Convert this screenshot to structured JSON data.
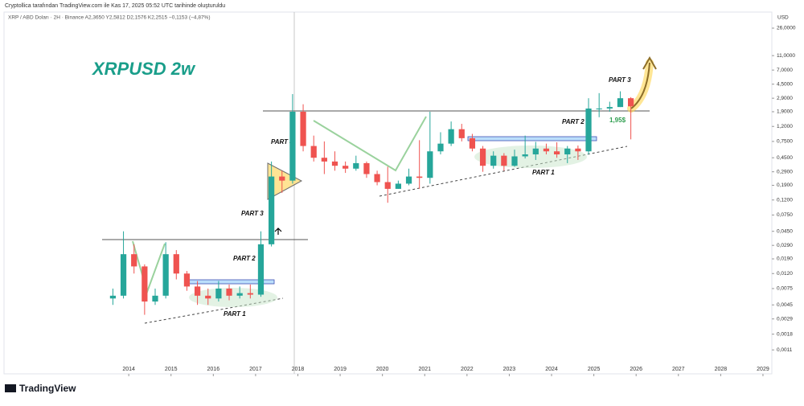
{
  "header": {
    "attribution": "Cryptollica tarafından TradingView.com ile Kas 17, 2025 05:52 UTC tarihinde oluşturuldu",
    "legend": "XRP / ABD Doları · 2H · Binance  A2,3650  Y2,5812  D2,1576  K2,2515  −0,1153 (−4,87%)",
    "currency": "USD"
  },
  "footer": {
    "brand": "TradingView"
  },
  "chart_data": {
    "type": "candlestick",
    "title": "XRPUSD 2w",
    "log_scale": true,
    "up_color": "#26a69a",
    "down_color": "#ef5350",
    "x": [
      2013.625,
      2013.875,
      2014.125,
      2014.375,
      2014.625,
      2014.875,
      2015.125,
      2015.375,
      2015.625,
      2015.875,
      2016.125,
      2016.375,
      2016.625,
      2016.875,
      2017.125,
      2017.375,
      2017.625,
      2017.875,
      2018.125,
      2018.375,
      2018.625,
      2018.875,
      2019.125,
      2019.375,
      2019.625,
      2019.875,
      2020.125,
      2020.375,
      2020.625,
      2020.875,
      2021.125,
      2021.375,
      2021.625,
      2021.875,
      2022.125,
      2022.375,
      2022.625,
      2022.875,
      2023.125,
      2023.375,
      2023.625,
      2023.875,
      2024.125,
      2024.375,
      2024.625,
      2024.875,
      2025.125,
      2025.375,
      2025.625,
      2025.875
    ],
    "open": [
      0.0055,
      0.006,
      0.022,
      0.015,
      0.005,
      0.006,
      0.022,
      0.012,
      0.008,
      0.006,
      0.0055,
      0.0075,
      0.006,
      0.0065,
      0.0062,
      0.03,
      0.25,
      0.22,
      1.9,
      0.65,
      0.45,
      0.4,
      0.35,
      0.32,
      0.38,
      0.27,
      0.21,
      0.17,
      0.2,
      0.25,
      0.24,
      0.55,
      0.7,
      1.1,
      0.83,
      0.6,
      0.35,
      0.48,
      0.35,
      0.47,
      0.5,
      0.6,
      0.55,
      0.5,
      0.6,
      0.55,
      2.1,
      2.1,
      2.2,
      2.9
    ],
    "high": [
      0.0075,
      0.045,
      0.03,
      0.016,
      0.0075,
      0.032,
      0.025,
      0.013,
      0.0095,
      0.0075,
      0.0095,
      0.0085,
      0.008,
      0.0085,
      0.045,
      0.4,
      0.3,
      3.3,
      2.4,
      0.9,
      0.75,
      0.55,
      0.4,
      0.48,
      0.4,
      0.3,
      0.34,
      0.22,
      0.32,
      0.78,
      1.9,
      1.0,
      1.4,
      1.3,
      0.95,
      0.65,
      0.55,
      0.52,
      0.58,
      0.9,
      0.74,
      0.7,
      0.73,
      0.65,
      0.66,
      2.9,
      3.4,
      2.6,
      3.6,
      3.0
    ],
    "low": [
      0.0045,
      0.0055,
      0.012,
      0.0033,
      0.0045,
      0.0055,
      0.01,
      0.007,
      0.0045,
      0.0045,
      0.005,
      0.0052,
      0.0055,
      0.0055,
      0.0058,
      0.028,
      0.15,
      0.2,
      0.55,
      0.4,
      0.27,
      0.3,
      0.28,
      0.3,
      0.24,
      0.19,
      0.11,
      0.17,
      0.19,
      0.17,
      0.2,
      0.5,
      0.65,
      0.75,
      0.55,
      0.29,
      0.32,
      0.3,
      0.34,
      0.44,
      0.42,
      0.5,
      0.45,
      0.38,
      0.42,
      0.5,
      1.6,
      1.9,
      2.2,
      0.8
    ],
    "close": [
      0.006,
      0.022,
      0.015,
      0.005,
      0.006,
      0.022,
      0.012,
      0.008,
      0.006,
      0.0055,
      0.0075,
      0.006,
      0.0065,
      0.0062,
      0.03,
      0.25,
      0.22,
      1.9,
      0.65,
      0.45,
      0.4,
      0.35,
      0.32,
      0.38,
      0.27,
      0.21,
      0.17,
      0.2,
      0.25,
      0.24,
      0.55,
      0.7,
      1.1,
      0.83,
      0.6,
      0.35,
      0.48,
      0.35,
      0.47,
      0.5,
      0.6,
      0.55,
      0.5,
      0.6,
      0.55,
      2.1,
      2.1,
      2.2,
      2.9,
      2.2515
    ],
    "xlim": [
      2011.05,
      2029.21
    ],
    "xticks": [
      2014,
      2015,
      2016,
      2017,
      2018,
      2019,
      2020,
      2021,
      2022,
      2023,
      2024,
      2025,
      2026,
      2027,
      2028,
      2029
    ],
    "ylim": [
      0.00052,
      43
    ],
    "yticks": [
      {
        "value": 26,
        "label": "26,0000"
      },
      {
        "value": 11,
        "label": "11,0000"
      },
      {
        "value": 7,
        "label": "7,0000"
      },
      {
        "value": 4.5,
        "label": "4,5000"
      },
      {
        "value": 2.9,
        "label": "2,9000"
      },
      {
        "value": 1.9,
        "label": "1,9000"
      },
      {
        "value": 1.2,
        "label": "1,2000"
      },
      {
        "value": 0.75,
        "label": "0,7500"
      },
      {
        "value": 0.45,
        "label": "0,4500"
      },
      {
        "value": 0.29,
        "label": "0,2900"
      },
      {
        "value": 0.19,
        "label": "0,1900"
      },
      {
        "value": 0.12,
        "label": "0,1200"
      },
      {
        "value": 0.075,
        "label": "0,0750"
      },
      {
        "value": 0.045,
        "label": "0,0450"
      },
      {
        "value": 0.029,
        "label": "0,0290"
      },
      {
        "value": 0.019,
        "label": "0,0190"
      },
      {
        "value": 0.012,
        "label": "0,0120"
      },
      {
        "value": 0.0075,
        "label": "0,0075"
      },
      {
        "value": 0.0045,
        "label": "0,0045"
      },
      {
        "value": 0.0029,
        "label": "0,0029"
      },
      {
        "value": 0.0018,
        "label": "0,0018"
      },
      {
        "value": 0.0011,
        "label": "0,0011"
      }
    ],
    "annotations": [
      "PART 1",
      "PART 2",
      "PART 3",
      "PART 4",
      "PART 3",
      "PART 2",
      "PART 1",
      "1,95$"
    ]
  }
}
